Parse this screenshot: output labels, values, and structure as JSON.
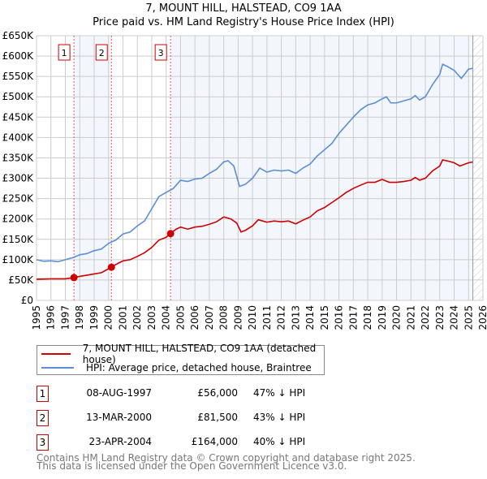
{
  "chart_data": {
    "type": "line",
    "title": "7, MOUNT HILL, HALSTEAD, CO9 1AA",
    "subtitle": "Price paid vs. HM Land Registry's House Price Index (HPI)",
    "xlim": [
      1995,
      2026
    ],
    "ylim": [
      0,
      650000
    ],
    "x_ticks": [
      "1995",
      "1996",
      "1997",
      "1998",
      "1999",
      "2000",
      "2001",
      "2002",
      "2003",
      "2004",
      "2005",
      "2006",
      "2007",
      "2008",
      "2009",
      "2010",
      "2011",
      "2012",
      "2013",
      "2014",
      "2015",
      "2016",
      "2017",
      "2018",
      "2019",
      "2020",
      "2021",
      "2022",
      "2023",
      "2024",
      "2025",
      "2026"
    ],
    "y_ticks": [
      {
        "v": 0,
        "label": "£0"
      },
      {
        "v": 50000,
        "label": "£50K"
      },
      {
        "v": 100000,
        "label": "£100K"
      },
      {
        "v": 150000,
        "label": "£150K"
      },
      {
        "v": 200000,
        "label": "£200K"
      },
      {
        "v": 250000,
        "label": "£250K"
      },
      {
        "v": 300000,
        "label": "£300K"
      },
      {
        "v": 350000,
        "label": "£350K"
      },
      {
        "v": 400000,
        "label": "£400K"
      },
      {
        "v": 450000,
        "label": "£450K"
      },
      {
        "v": 500000,
        "label": "£500K"
      },
      {
        "v": 550000,
        "label": "£550K"
      },
      {
        "v": 600000,
        "label": "£600K"
      },
      {
        "v": 650000,
        "label": "£650K"
      }
    ],
    "grid": true,
    "data_end": 2025.3,
    "series": [
      {
        "name": "7, MOUNT HILL, HALSTEAD, CO9 1AA (detached house)",
        "color": "#cc0000",
        "x": [
          1995,
          1996,
          1997,
          1997.6,
          1998,
          1999,
          1999.5,
          2000.2,
          2000.5,
          2001,
          2001.5,
          2002,
          2002.5,
          2003,
          2003.5,
          2004,
          2004.3,
          2004.7,
          2005,
          2005.5,
          2006,
          2006.5,
          2007,
          2007.5,
          2008,
          2008.5,
          2008.9,
          2009.2,
          2009.5,
          2010,
          2010.4,
          2011,
          2011.5,
          2012,
          2012.5,
          2013,
          2013.5,
          2014,
          2014.5,
          2015,
          2015.5,
          2016,
          2016.5,
          2017,
          2017.5,
          2018,
          2018.5,
          2019,
          2019.5,
          2020,
          2020.5,
          2021,
          2021.3,
          2021.6,
          2022,
          2022.5,
          2023,
          2023.2,
          2023.6,
          2024,
          2024.4,
          2025,
          2025.3
        ],
        "y": [
          52000,
          53000,
          53000,
          56000,
          59000,
          65000,
          68000,
          81500,
          88000,
          97000,
          100000,
          108000,
          117000,
          130000,
          148000,
          155000,
          164000,
          175000,
          180000,
          175000,
          180000,
          182000,
          187000,
          193000,
          205000,
          200000,
          190000,
          168000,
          172000,
          183000,
          198000,
          192000,
          195000,
          193000,
          195000,
          188000,
          197000,
          205000,
          220000,
          228000,
          240000,
          252000,
          265000,
          275000,
          283000,
          290000,
          290000,
          297000,
          290000,
          290000,
          292000,
          295000,
          302000,
          295000,
          300000,
          318000,
          330000,
          345000,
          342000,
          338000,
          330000,
          338000,
          340000
        ]
      },
      {
        "name": "HPI: Average price, detached house, Braintree",
        "color": "#5b8fd4",
        "x": [
          1995,
          1995.5,
          1996,
          1996.5,
          1997,
          1997.6,
          1998,
          1998.5,
          1999,
          1999.5,
          2000,
          2000.5,
          2001,
          2001.5,
          2002,
          2002.5,
          2003,
          2003.5,
          2004,
          2004.5,
          2005,
          2005.5,
          2006,
          2006.5,
          2007,
          2007.5,
          2008,
          2008.3,
          2008.7,
          2009.1,
          2009.5,
          2010,
          2010.5,
          2011,
          2011.5,
          2012,
          2012.5,
          2013,
          2013.5,
          2014,
          2014.5,
          2015,
          2015.5,
          2016,
          2016.5,
          2017,
          2017.5,
          2018,
          2018.5,
          2019,
          2019.3,
          2019.6,
          2020,
          2020.5,
          2021,
          2021.3,
          2021.6,
          2022,
          2022.5,
          2023,
          2023.2,
          2023.5,
          2024,
          2024.5,
          2025,
          2025.3
        ],
        "y": [
          100000,
          96000,
          97000,
          95000,
          100000,
          106000,
          112000,
          115000,
          122000,
          126000,
          140000,
          148000,
          163000,
          168000,
          183000,
          195000,
          225000,
          255000,
          265000,
          275000,
          295000,
          292000,
          298000,
          300000,
          312000,
          322000,
          340000,
          343000,
          330000,
          280000,
          285000,
          300000,
          325000,
          315000,
          320000,
          318000,
          320000,
          312000,
          325000,
          335000,
          355000,
          370000,
          385000,
          410000,
          430000,
          450000,
          468000,
          480000,
          485000,
          495000,
          500000,
          485000,
          485000,
          490000,
          495000,
          503000,
          492000,
          500000,
          530000,
          555000,
          580000,
          575000,
          565000,
          545000,
          568000,
          570000
        ]
      }
    ],
    "sales": [
      {
        "label": "1",
        "x": 1997.6,
        "y": 56000,
        "date": "08-AUG-1997",
        "price": "£56,000",
        "hpi": "47% ↓ HPI"
      },
      {
        "label": "2",
        "x": 2000.2,
        "y": 81500,
        "date": "13-MAR-2000",
        "price": "£81,500",
        "hpi": "43% ↓ HPI"
      },
      {
        "label": "3",
        "x": 2004.31,
        "y": 164000,
        "date": "23-APR-2004",
        "price": "£164,000",
        "hpi": "40% ↓ HPI"
      }
    ],
    "legend_placement": "below"
  },
  "footer": {
    "line1": "Contains HM Land Registry data © Crown copyright and database right 2025.",
    "line2": "This data is licensed under the Open Government Licence v3.0."
  }
}
